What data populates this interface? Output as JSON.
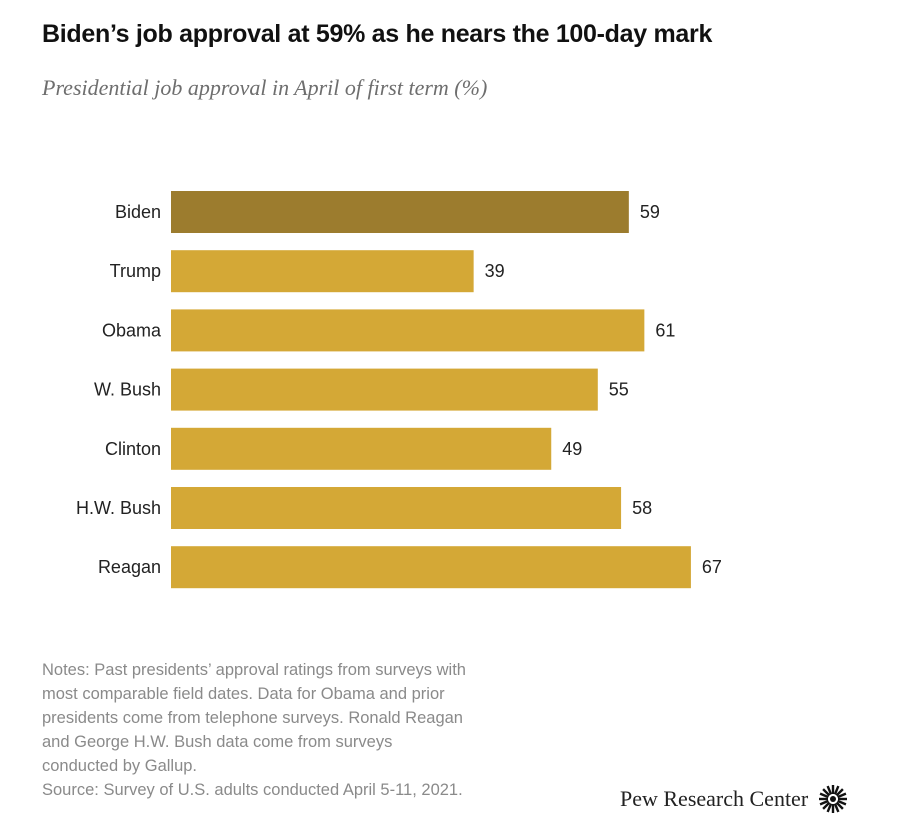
{
  "chart_data": {
    "type": "bar",
    "orientation": "horizontal",
    "title": "Biden’s job approval at 59% as he nears the 100-day mark",
    "subtitle": "Presidential job approval in April of first term (%)",
    "categories": [
      "Biden",
      "Trump",
      "Obama",
      "W. Bush",
      "Clinton",
      "H.W. Bush",
      "Reagan"
    ],
    "values": [
      59,
      39,
      61,
      55,
      49,
      58,
      67
    ],
    "highlight": "Biden",
    "xlabel": "",
    "ylabel": "",
    "xlim": [
      0,
      67
    ],
    "grid": false,
    "colors": {
      "highlight": "#9c7c2e",
      "default": "#d4a836"
    }
  },
  "notes": {
    "lines": [
      "Notes: Past presidents’ approval ratings from surveys with",
      "most comparable field dates. Data for Obama and prior",
      "presidents come from telephone surveys. Ronald Reagan",
      "and George H.W. Bush data come from surveys",
      "conducted by Gallup.",
      "Source: Survey of U.S. adults conducted April 5-11, 2021."
    ]
  },
  "brand": {
    "name": "Pew Research Center",
    "icon": "pew-sunburst-icon"
  }
}
